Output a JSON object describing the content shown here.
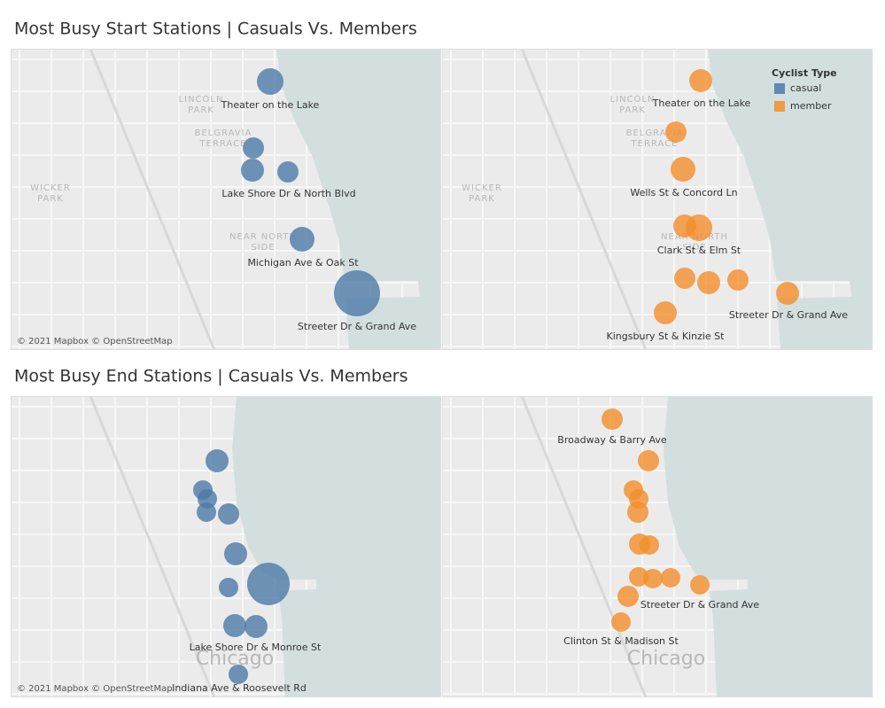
{
  "sections": [
    {
      "title": "Most Busy Start Stations | Casuals Vs. Members",
      "maps": [
        {
          "stations": [
            "Theater on the Lake",
            "Lake Shore Dr & North Blvd",
            "Michigan Ave & Oak St",
            "Streeter Dr & Grand Ave"
          ],
          "place_names": [
            [
              "LINCOLN",
              "PARK"
            ],
            [
              "BELGRAVIA",
              "TERRACE"
            ],
            [
              "WICKER",
              "PARK"
            ],
            [
              "NEAR NORTH",
              "SIDE"
            ]
          ],
          "attribution": "© 2021 Mapbox © OpenStreetMap"
        },
        {
          "stations": [
            "Theater on the Lake",
            "Wells St & Concord Ln",
            "Clark St & Elm St",
            "Streeter Dr & Grand Ave",
            "Kingsbury St & Kinzie St"
          ],
          "place_names": [
            [
              "LINCOLN",
              "PARK"
            ],
            [
              "BELGRAVIA",
              "TERRACE"
            ],
            [
              "WICKER",
              "PARK"
            ],
            [
              "NEAR NORTH",
              "SIDE"
            ]
          ]
        }
      ]
    },
    {
      "title": "Most Busy End Stations | Casuals Vs. Members",
      "maps": [
        {
          "stations": [
            "Lake Shore Dr & Monroe St",
            "Indiana Ave & Roosevelt Rd"
          ],
          "place_names": [
            [
              "Chicago"
            ]
          ],
          "attribution": "© 2021 Mapbox © OpenStreetMap"
        },
        {
          "stations": [
            "Broadway & Barry Ave",
            "Streeter Dr & Grand Ave",
            "Clinton St & Madison St"
          ],
          "place_names": [
            [
              "Chicago"
            ]
          ]
        }
      ]
    }
  ],
  "legend": {
    "title": "Cyclist Type",
    "items": [
      {
        "name": "casual",
        "color": "#4e79a7"
      },
      {
        "name": "member",
        "color": "#f28e2b"
      }
    ]
  }
}
